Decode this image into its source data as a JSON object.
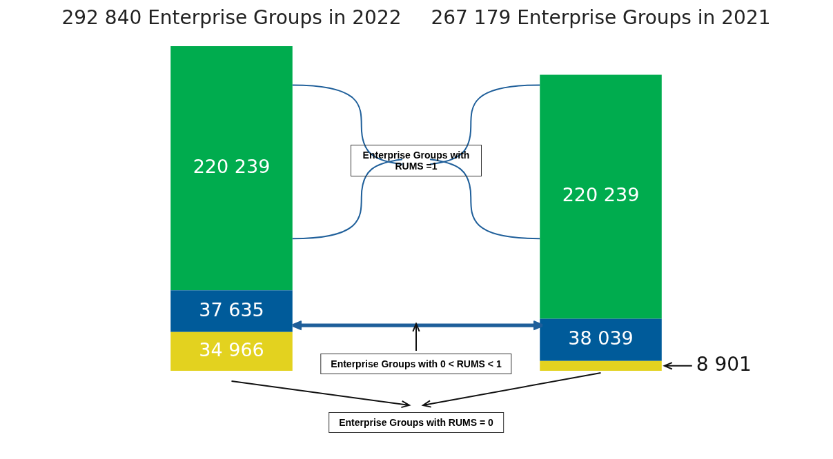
{
  "chart_data": {
    "type": "bar",
    "stacked": true,
    "data_labels": true,
    "legend": false,
    "grid": false,
    "categories": [
      "292 840 Enterprise Groups in 2022",
      "267 179 Enterprise Groups in 2021"
    ],
    "series": [
      {
        "color": "#e3d21f",
        "values": [
          34966,
          8901
        ]
      },
      {
        "color": "#005b9a",
        "values": [
          37635,
          38039
        ]
      },
      {
        "color": "#00ac4e",
        "values": [
          220239,
          220239
        ]
      }
    ],
    "annotations": [
      "Enterprise Groups with RUMS =1",
      "Enterprise Groups with 0 < RUMS < 1",
      "Enterprise Groups with RUMS = 0"
    ]
  }
}
